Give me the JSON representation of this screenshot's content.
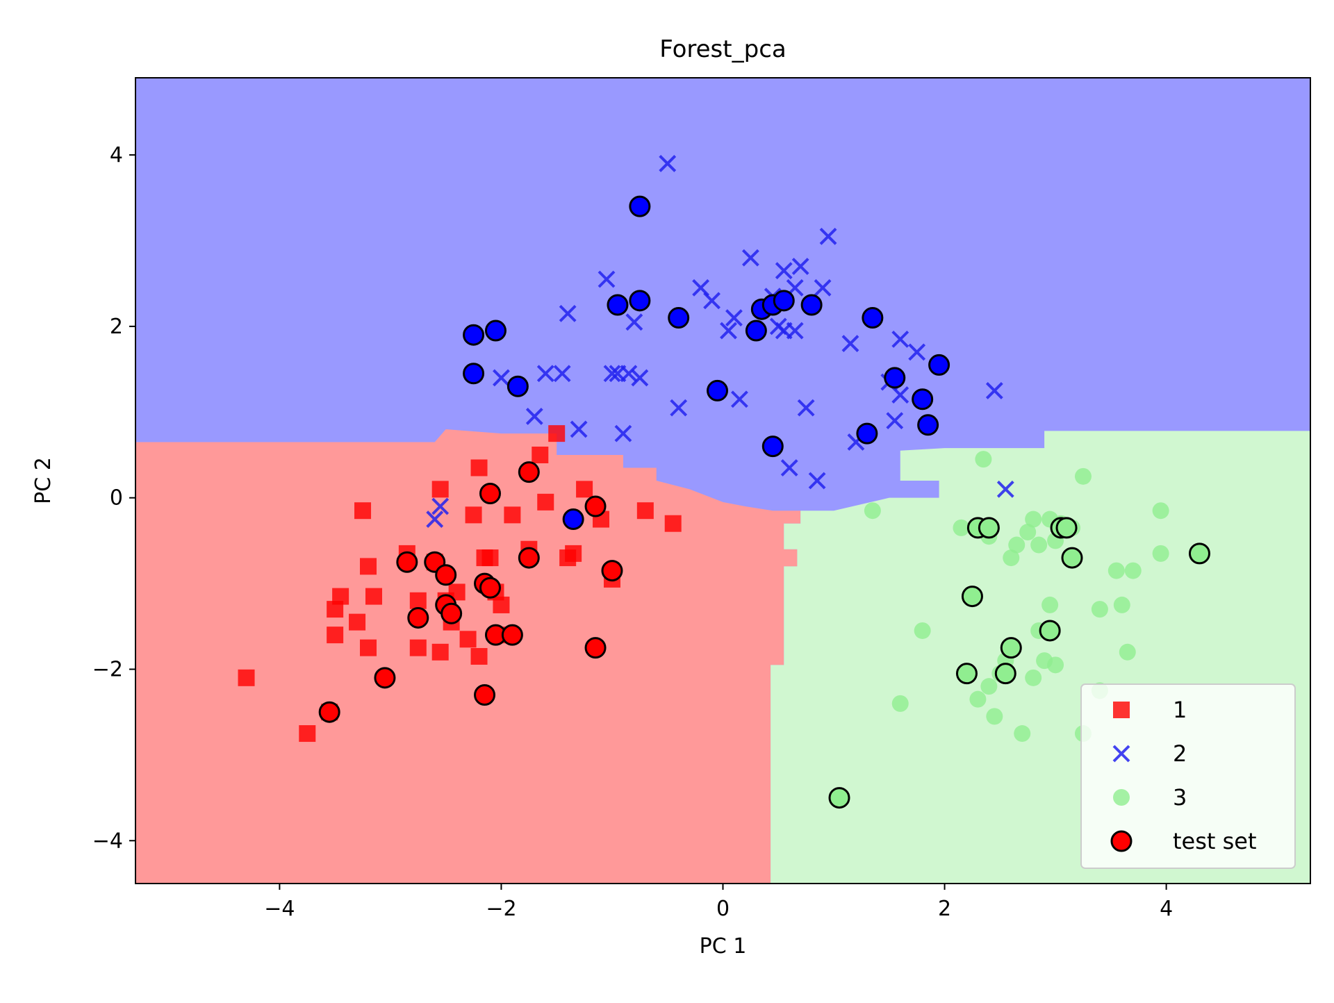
{
  "chart_data": {
    "type": "scatter",
    "title": "Forest_pca",
    "xlabel": "PC 1",
    "ylabel": "PC 2",
    "xlim": [
      -5.3,
      5.3
    ],
    "ylim": [
      -4.5,
      4.9
    ],
    "xticks": [
      {
        "value": -4,
        "label": "−4"
      },
      {
        "value": -2,
        "label": "−2"
      },
      {
        "value": 0,
        "label": "0"
      },
      {
        "value": 2,
        "label": "2"
      },
      {
        "value": 4,
        "label": "4"
      }
    ],
    "yticks": [
      {
        "value": -4,
        "label": "−4"
      },
      {
        "value": -2,
        "label": "−2"
      },
      {
        "value": 0,
        "label": "0"
      },
      {
        "value": 2,
        "label": "2"
      },
      {
        "value": 4,
        "label": "4"
      }
    ],
    "grid": false,
    "legend_position": "lower-right",
    "regions": [
      {
        "class": "1",
        "color": "#ff9999",
        "polygon": [
          [
            -5.3,
            -4.5
          ],
          [
            0.43,
            -4.5
          ],
          [
            0.43,
            -1.95
          ],
          [
            0.55,
            -1.95
          ],
          [
            0.55,
            -0.8
          ],
          [
            0.67,
            -0.8
          ],
          [
            0.67,
            -0.6
          ],
          [
            0.55,
            -0.6
          ],
          [
            0.55,
            -0.3
          ],
          [
            0.7,
            -0.3
          ],
          [
            0.7,
            -0.15
          ],
          [
            0.45,
            -0.15
          ],
          [
            0.2,
            -0.1
          ],
          [
            0.0,
            -0.05
          ],
          [
            -0.3,
            0.1
          ],
          [
            -0.6,
            0.2
          ],
          [
            -0.6,
            0.35
          ],
          [
            -0.9,
            0.35
          ],
          [
            -0.9,
            0.5
          ],
          [
            -1.0,
            0.5
          ],
          [
            -1.5,
            0.5
          ],
          [
            -1.5,
            0.75
          ],
          [
            -2.0,
            0.75
          ],
          [
            -2.5,
            0.8
          ],
          [
            -2.6,
            0.65
          ],
          [
            -5.3,
            0.65
          ]
        ]
      },
      {
        "class": "3",
        "color": "#d0f7d0",
        "polygon": [
          [
            0.43,
            -4.5
          ],
          [
            5.3,
            -4.5
          ],
          [
            5.3,
            0.78
          ],
          [
            3.5,
            0.78
          ],
          [
            2.9,
            0.78
          ],
          [
            2.9,
            0.58
          ],
          [
            2.0,
            0.58
          ],
          [
            1.6,
            0.55
          ],
          [
            1.6,
            0.2
          ],
          [
            1.95,
            0.2
          ],
          [
            1.95,
            0.0
          ],
          [
            1.5,
            0.0
          ],
          [
            1.0,
            -0.15
          ],
          [
            0.7,
            -0.15
          ],
          [
            0.7,
            -0.3
          ],
          [
            0.55,
            -0.3
          ],
          [
            0.55,
            -0.6
          ],
          [
            0.67,
            -0.6
          ],
          [
            0.67,
            -0.8
          ],
          [
            0.55,
            -0.8
          ],
          [
            0.55,
            -1.95
          ],
          [
            0.43,
            -1.95
          ]
        ]
      }
    ],
    "background_color": "#9999ff",
    "series": [
      {
        "name": "1",
        "marker": "square",
        "color": "#ff0000",
        "points": [
          [
            -4.3,
            -2.1
          ],
          [
            -3.75,
            -2.75
          ],
          [
            -3.55,
            -2.5
          ],
          [
            -3.5,
            -1.6
          ],
          [
            -3.5,
            -1.3
          ],
          [
            -3.45,
            -1.15
          ],
          [
            -3.3,
            -1.45
          ],
          [
            -3.2,
            -0.8
          ],
          [
            -3.2,
            -1.75
          ],
          [
            -3.15,
            -1.15
          ],
          [
            -3.25,
            -0.15
          ],
          [
            -2.85,
            -0.65
          ],
          [
            -2.75,
            -1.2
          ],
          [
            -2.75,
            -1.75
          ],
          [
            -2.6,
            -0.75
          ],
          [
            -2.55,
            -1.8
          ],
          [
            -2.55,
            0.1
          ],
          [
            -2.5,
            -1.2
          ],
          [
            -2.45,
            -1.45
          ],
          [
            -2.4,
            -1.1
          ],
          [
            -2.3,
            -1.65
          ],
          [
            -2.25,
            -0.2
          ],
          [
            -2.2,
            -1.85
          ],
          [
            -2.2,
            0.35
          ],
          [
            -2.15,
            -0.7
          ],
          [
            -2.1,
            -0.7
          ],
          [
            -2.05,
            -1.1
          ],
          [
            -2.0,
            -1.25
          ],
          [
            -1.95,
            -1.6
          ],
          [
            -1.9,
            -0.2
          ],
          [
            -1.75,
            -0.6
          ],
          [
            -1.65,
            0.5
          ],
          [
            -1.6,
            -0.05
          ],
          [
            -1.5,
            0.75
          ],
          [
            -1.4,
            -0.7
          ],
          [
            -1.35,
            -0.65
          ],
          [
            -1.25,
            0.1
          ],
          [
            -1.1,
            -0.25
          ],
          [
            -1.0,
            -0.95
          ],
          [
            -0.7,
            -0.15
          ],
          [
            -0.45,
            -0.3
          ]
        ]
      },
      {
        "name": "2",
        "marker": "x",
        "color": "#2222ee",
        "points": [
          [
            -2.6,
            -0.25
          ],
          [
            -2.55,
            -0.1
          ],
          [
            -2.0,
            1.4
          ],
          [
            -1.7,
            0.95
          ],
          [
            -1.6,
            1.45
          ],
          [
            -1.45,
            1.45
          ],
          [
            -1.4,
            2.15
          ],
          [
            -1.3,
            0.8
          ],
          [
            -1.05,
            2.55
          ],
          [
            -1.0,
            1.45
          ],
          [
            -0.95,
            1.45
          ],
          [
            -0.9,
            0.75
          ],
          [
            -0.85,
            1.45
          ],
          [
            -0.8,
            2.05
          ],
          [
            -0.75,
            1.4
          ],
          [
            -0.5,
            3.9
          ],
          [
            -0.4,
            1.05
          ],
          [
            -0.2,
            2.45
          ],
          [
            -0.1,
            2.3
          ],
          [
            0.05,
            1.95
          ],
          [
            0.1,
            2.1
          ],
          [
            0.15,
            1.15
          ],
          [
            0.25,
            2.8
          ],
          [
            0.45,
            2.35
          ],
          [
            0.5,
            2.0
          ],
          [
            0.55,
            2.65
          ],
          [
            0.55,
            1.95
          ],
          [
            0.6,
            0.35
          ],
          [
            0.65,
            2.45
          ],
          [
            0.65,
            1.95
          ],
          [
            0.7,
            2.7
          ],
          [
            0.75,
            1.05
          ],
          [
            0.85,
            0.2
          ],
          [
            0.9,
            2.45
          ],
          [
            0.95,
            3.05
          ],
          [
            1.15,
            1.8
          ],
          [
            1.2,
            0.65
          ],
          [
            1.5,
            1.35
          ],
          [
            1.55,
            0.9
          ],
          [
            1.6,
            1.85
          ],
          [
            1.6,
            1.2
          ],
          [
            1.75,
            1.7
          ],
          [
            2.45,
            1.25
          ],
          [
            2.55,
            0.1
          ]
        ]
      },
      {
        "name": "3",
        "marker": "circle",
        "color": "#90ee90",
        "points": [
          [
            1.35,
            -0.15
          ],
          [
            1.6,
            -2.4
          ],
          [
            1.8,
            -1.55
          ],
          [
            2.15,
            -0.35
          ],
          [
            2.25,
            -1.15
          ],
          [
            2.3,
            -2.35
          ],
          [
            2.35,
            0.45
          ],
          [
            2.4,
            -0.45
          ],
          [
            2.4,
            -2.2
          ],
          [
            2.45,
            -2.55
          ],
          [
            2.5,
            -2.05
          ],
          [
            2.55,
            -1.9
          ],
          [
            2.6,
            -0.7
          ],
          [
            2.65,
            -0.55
          ],
          [
            2.7,
            -2.75
          ],
          [
            2.75,
            -0.4
          ],
          [
            2.8,
            -0.25
          ],
          [
            2.8,
            -2.1
          ],
          [
            2.85,
            -1.55
          ],
          [
            2.85,
            -0.55
          ],
          [
            2.9,
            -1.9
          ],
          [
            2.95,
            -1.25
          ],
          [
            2.95,
            -0.25
          ],
          [
            3.0,
            -0.5
          ],
          [
            3.0,
            -1.95
          ],
          [
            3.05,
            -0.3
          ],
          [
            3.15,
            -0.35
          ],
          [
            3.25,
            0.25
          ],
          [
            3.4,
            -1.3
          ],
          [
            3.4,
            -2.25
          ],
          [
            3.55,
            -0.85
          ],
          [
            3.6,
            -1.25
          ],
          [
            3.65,
            -1.8
          ],
          [
            3.7,
            -0.85
          ],
          [
            3.95,
            -0.15
          ],
          [
            3.95,
            -0.65
          ],
          [
            3.25,
            -2.75
          ]
        ]
      },
      {
        "name": "test set",
        "marker": "circle-outlined",
        "colors_by_class": {
          "1": "#ff0000",
          "2": "#0000ff",
          "3": "#90ee90"
        },
        "points": [
          {
            "x": -3.55,
            "y": -2.5,
            "class": "1"
          },
          {
            "x": -3.05,
            "y": -2.1,
            "class": "1"
          },
          {
            "x": -2.85,
            "y": -0.75,
            "class": "1"
          },
          {
            "x": -2.75,
            "y": -1.4,
            "class": "1"
          },
          {
            "x": -2.6,
            "y": -0.75,
            "class": "1"
          },
          {
            "x": -2.5,
            "y": -0.9,
            "class": "1"
          },
          {
            "x": -2.5,
            "y": -1.25,
            "class": "1"
          },
          {
            "x": -2.45,
            "y": -1.35,
            "class": "1"
          },
          {
            "x": -2.15,
            "y": -1.0,
            "class": "1"
          },
          {
            "x": -2.1,
            "y": 0.05,
            "class": "1"
          },
          {
            "x": -2.1,
            "y": -1.05,
            "class": "1"
          },
          {
            "x": -2.05,
            "y": -1.6,
            "class": "1"
          },
          {
            "x": -2.15,
            "y": -2.3,
            "class": "1"
          },
          {
            "x": -1.9,
            "y": -1.6,
            "class": "1"
          },
          {
            "x": -1.75,
            "y": 0.3,
            "class": "1"
          },
          {
            "x": -1.75,
            "y": -0.7,
            "class": "1"
          },
          {
            "x": -1.15,
            "y": -0.1,
            "class": "1"
          },
          {
            "x": -1.15,
            "y": -1.75,
            "class": "1"
          },
          {
            "x": -1.0,
            "y": -0.85,
            "class": "1"
          },
          {
            "x": -2.25,
            "y": 1.9,
            "class": "2"
          },
          {
            "x": -2.05,
            "y": 1.95,
            "class": "2"
          },
          {
            "x": -2.25,
            "y": 1.45,
            "class": "2"
          },
          {
            "x": -1.85,
            "y": 1.3,
            "class": "2"
          },
          {
            "x": -1.35,
            "y": -0.25,
            "class": "2"
          },
          {
            "x": -0.95,
            "y": 2.25,
            "class": "2"
          },
          {
            "x": -0.75,
            "y": 2.3,
            "class": "2"
          },
          {
            "x": -0.75,
            "y": 3.4,
            "class": "2"
          },
          {
            "x": -0.4,
            "y": 2.1,
            "class": "2"
          },
          {
            "x": -0.05,
            "y": 1.25,
            "class": "2"
          },
          {
            "x": 0.3,
            "y": 1.95,
            "class": "2"
          },
          {
            "x": 0.35,
            "y": 2.2,
            "class": "2"
          },
          {
            "x": 0.45,
            "y": 2.25,
            "class": "2"
          },
          {
            "x": 0.55,
            "y": 2.3,
            "class": "2"
          },
          {
            "x": 0.45,
            "y": 0.6,
            "class": "2"
          },
          {
            "x": 0.8,
            "y": 2.25,
            "class": "2"
          },
          {
            "x": 1.3,
            "y": 0.75,
            "class": "2"
          },
          {
            "x": 1.35,
            "y": 2.1,
            "class": "2"
          },
          {
            "x": 1.55,
            "y": 1.4,
            "class": "2"
          },
          {
            "x": 1.8,
            "y": 1.15,
            "class": "2"
          },
          {
            "x": 1.85,
            "y": 0.85,
            "class": "2"
          },
          {
            "x": 1.95,
            "y": 1.55,
            "class": "2"
          },
          {
            "x": 1.05,
            "y": -3.5,
            "class": "3"
          },
          {
            "x": 2.2,
            "y": -2.05,
            "class": "3"
          },
          {
            "x": 2.25,
            "y": -1.15,
            "class": "3"
          },
          {
            "x": 2.3,
            "y": -0.35,
            "class": "3"
          },
          {
            "x": 2.4,
            "y": -0.35,
            "class": "3"
          },
          {
            "x": 2.55,
            "y": -2.05,
            "class": "3"
          },
          {
            "x": 2.6,
            "y": -1.75,
            "class": "3"
          },
          {
            "x": 2.95,
            "y": -1.55,
            "class": "3"
          },
          {
            "x": 3.05,
            "y": -0.35,
            "class": "3"
          },
          {
            "x": 3.1,
            "y": -0.35,
            "class": "3"
          },
          {
            "x": 3.15,
            "y": -0.7,
            "class": "3"
          },
          {
            "x": 4.3,
            "y": -0.65,
            "class": "3"
          }
        ]
      }
    ]
  }
}
